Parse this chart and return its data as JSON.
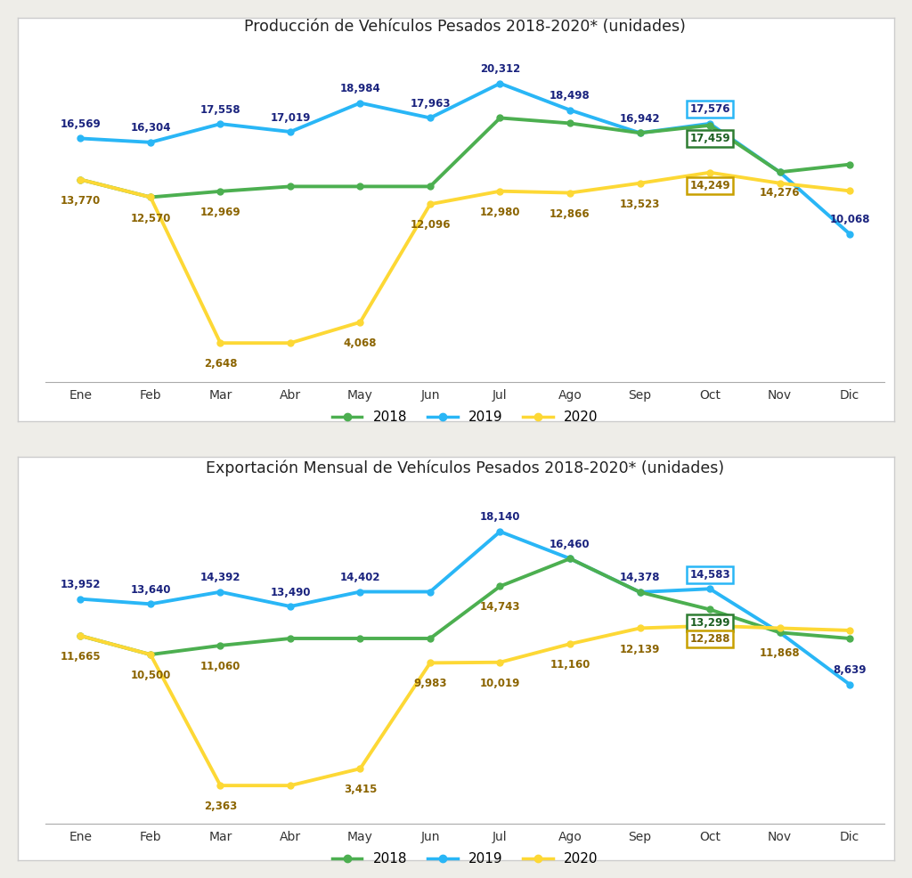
{
  "chart1_title": "Producción de Vehículos Pesados 2018-2020* (unidades)",
  "chart2_title": "Exportación Mensual de Vehículos Pesados 2018-2020* (unidades)",
  "months": [
    "Ene",
    "Feb",
    "Mar",
    "Abr",
    "May",
    "Jun",
    "Jul",
    "Ago",
    "Sep",
    "Oct",
    "Nov",
    "Dic"
  ],
  "c1_2019": [
    16569,
    16304,
    17558,
    17019,
    18984,
    17963,
    20312,
    18498,
    16942,
    17576,
    14276,
    10068
  ],
  "c1_2018": [
    13770,
    12570,
    12969,
    13200,
    13200,
    13200,
    17963,
    17200,
    16942,
    17459,
    14276,
    14800
  ],
  "c1_2020": [
    13770,
    12570,
    2648,
    2648,
    4068,
    12096,
    12980,
    12866,
    13523,
    14249,
    13523,
    13523
  ],
  "c2_2019": [
    13952,
    13640,
    14392,
    13490,
    14402,
    14402,
    18140,
    16460,
    14378,
    14583,
    11868,
    8639
  ],
  "c2_2018": [
    11665,
    10500,
    11060,
    11500,
    11500,
    11500,
    14743,
    16460,
    14378,
    13299,
    11868,
    11500
  ],
  "c2_2020": [
    11665,
    10500,
    2363,
    2363,
    3415,
    9983,
    10019,
    11160,
    12139,
    12288,
    12139,
    12139
  ],
  "c1_2019_show": [
    16569,
    16304,
    17558,
    17019,
    18984,
    17963,
    20312,
    18498,
    16942,
    17576,
    null,
    10068
  ],
  "c1_2018_show": [
    13770,
    12570,
    12969,
    null,
    null,
    null,
    null,
    null,
    null,
    17459,
    14276,
    null
  ],
  "c1_2020_show": [
    null,
    null,
    2648,
    null,
    4068,
    12096,
    12980,
    12866,
    13523,
    14249,
    null,
    null
  ],
  "c2_2019_show": [
    13952,
    13640,
    14392,
    13490,
    14402,
    null,
    18140,
    16460,
    14378,
    14583,
    null,
    8639
  ],
  "c2_2018_show": [
    11665,
    10500,
    11060,
    null,
    null,
    null,
    14743,
    null,
    null,
    13299,
    11868,
    null
  ],
  "c2_2020_show": [
    null,
    null,
    2363,
    null,
    3415,
    9983,
    10019,
    11160,
    12139,
    12288,
    null,
    null
  ],
  "color_2018": "#4caf50",
  "color_2019": "#29b6f6",
  "color_2020": "#fdd835",
  "label_blue": "#1a237e",
  "label_brown": "#8b6400",
  "label_green": "#1b5e20",
  "bg_outer": "#eeede8",
  "bg_panel": "#ffffff",
  "grid_color": "#d0d0d0"
}
